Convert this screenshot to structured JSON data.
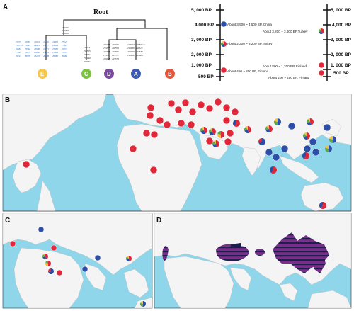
{
  "panels": {
    "a": "A",
    "b": "B",
    "c": "C",
    "d": "D"
  },
  "tree": {
    "root_label": "Root",
    "root_haplos": [
      "J16041",
      "J16431",
      "J16020"
    ],
    "clades": [
      {
        "letter": "E",
        "color": "#f5c74e",
        "haplos": [
          [
            "J1575",
            "J1575-9",
            "J2963",
            "J7819",
            "J2213"
          ],
          [
            "J2081",
            "J1941",
            "J5962",
            "J6079",
            "J6076"
          ],
          [
            "J2601",
            "J4931",
            "J6090",
            "J6092",
            "J6245"
          ],
          [
            "J4602",
            "J4877",
            "J2071",
            "J5859",
            "J6098"
          ],
          [
            "J4801",
            "J2964",
            "J5063",
            "J5862",
            "J6085"
          ],
          [
            "J7227",
            "J7527",
            "J2371",
            "J5875",
            "J6082"
          ]
        ]
      },
      {
        "letter": "C",
        "color": "#7cc242",
        "haplos": [
          [
            "J11174",
            "J14525",
            "J10901",
            "J13149",
            "J13171"
          ]
        ]
      },
      {
        "letter": "D",
        "color": "#7a4a9e",
        "haplos": [
          [
            "J15138",
            "J15353",
            "J15358",
            "J15365",
            "J20028"
          ],
          [
            "J16459",
            "J16354",
            "J15352",
            "J15372",
            "J15374"
          ]
        ]
      },
      {
        "letter": "A",
        "color": "#3a5bb0",
        "haplos": [
          [
            "J10997",
            "J10939",
            "J12093",
            "J13629"
          ],
          [
            "J11332-G",
            "J11615",
            "J13632",
            "J14605"
          ]
        ]
      },
      {
        "letter": "B",
        "color": "#e4573b",
        "haplos": []
      }
    ]
  },
  "timeline_left": {
    "ticks": [
      "5, 000 BP",
      "4,000 BP",
      "3, 000 BP",
      "2, 000 BP",
      "1, 000 BP",
      "500 BP"
    ],
    "events": [
      {
        "label": "About 3,500 ~ 4,500 BP, China",
        "pie": "blue"
      },
      {
        "label": "About 2,300 ~ 3,200 BP,Turkey",
        "pie": "mixed"
      },
      {
        "label": "About 450 ~ 800 BP, Finland",
        "pie": "red"
      }
    ]
  },
  "timeline_right": {
    "ticks": [
      "5, 000 BP",
      "4,000 BP",
      "3, 000 BP",
      "2, 000 BP",
      "1, 000 BP",
      "500 BP"
    ],
    "events": [
      {
        "label": "About 3,200 ~ 3,800 BP,Turkey",
        "pie": "mixed"
      },
      {
        "label": "About 800 ~ 1,200 BP, Finland",
        "pie": "red"
      },
      {
        "label": "About 200 ~ 450 BP, Finland",
        "pie": "red"
      }
    ]
  },
  "colors": {
    "ocean": "#8fd6ea",
    "land": "#f4f4f4",
    "blue": "#2d4ea6",
    "red": "#e0283a",
    "green": "#5aa84a",
    "yellow": "#f0c23c",
    "purple": "#6b2f8a"
  }
}
